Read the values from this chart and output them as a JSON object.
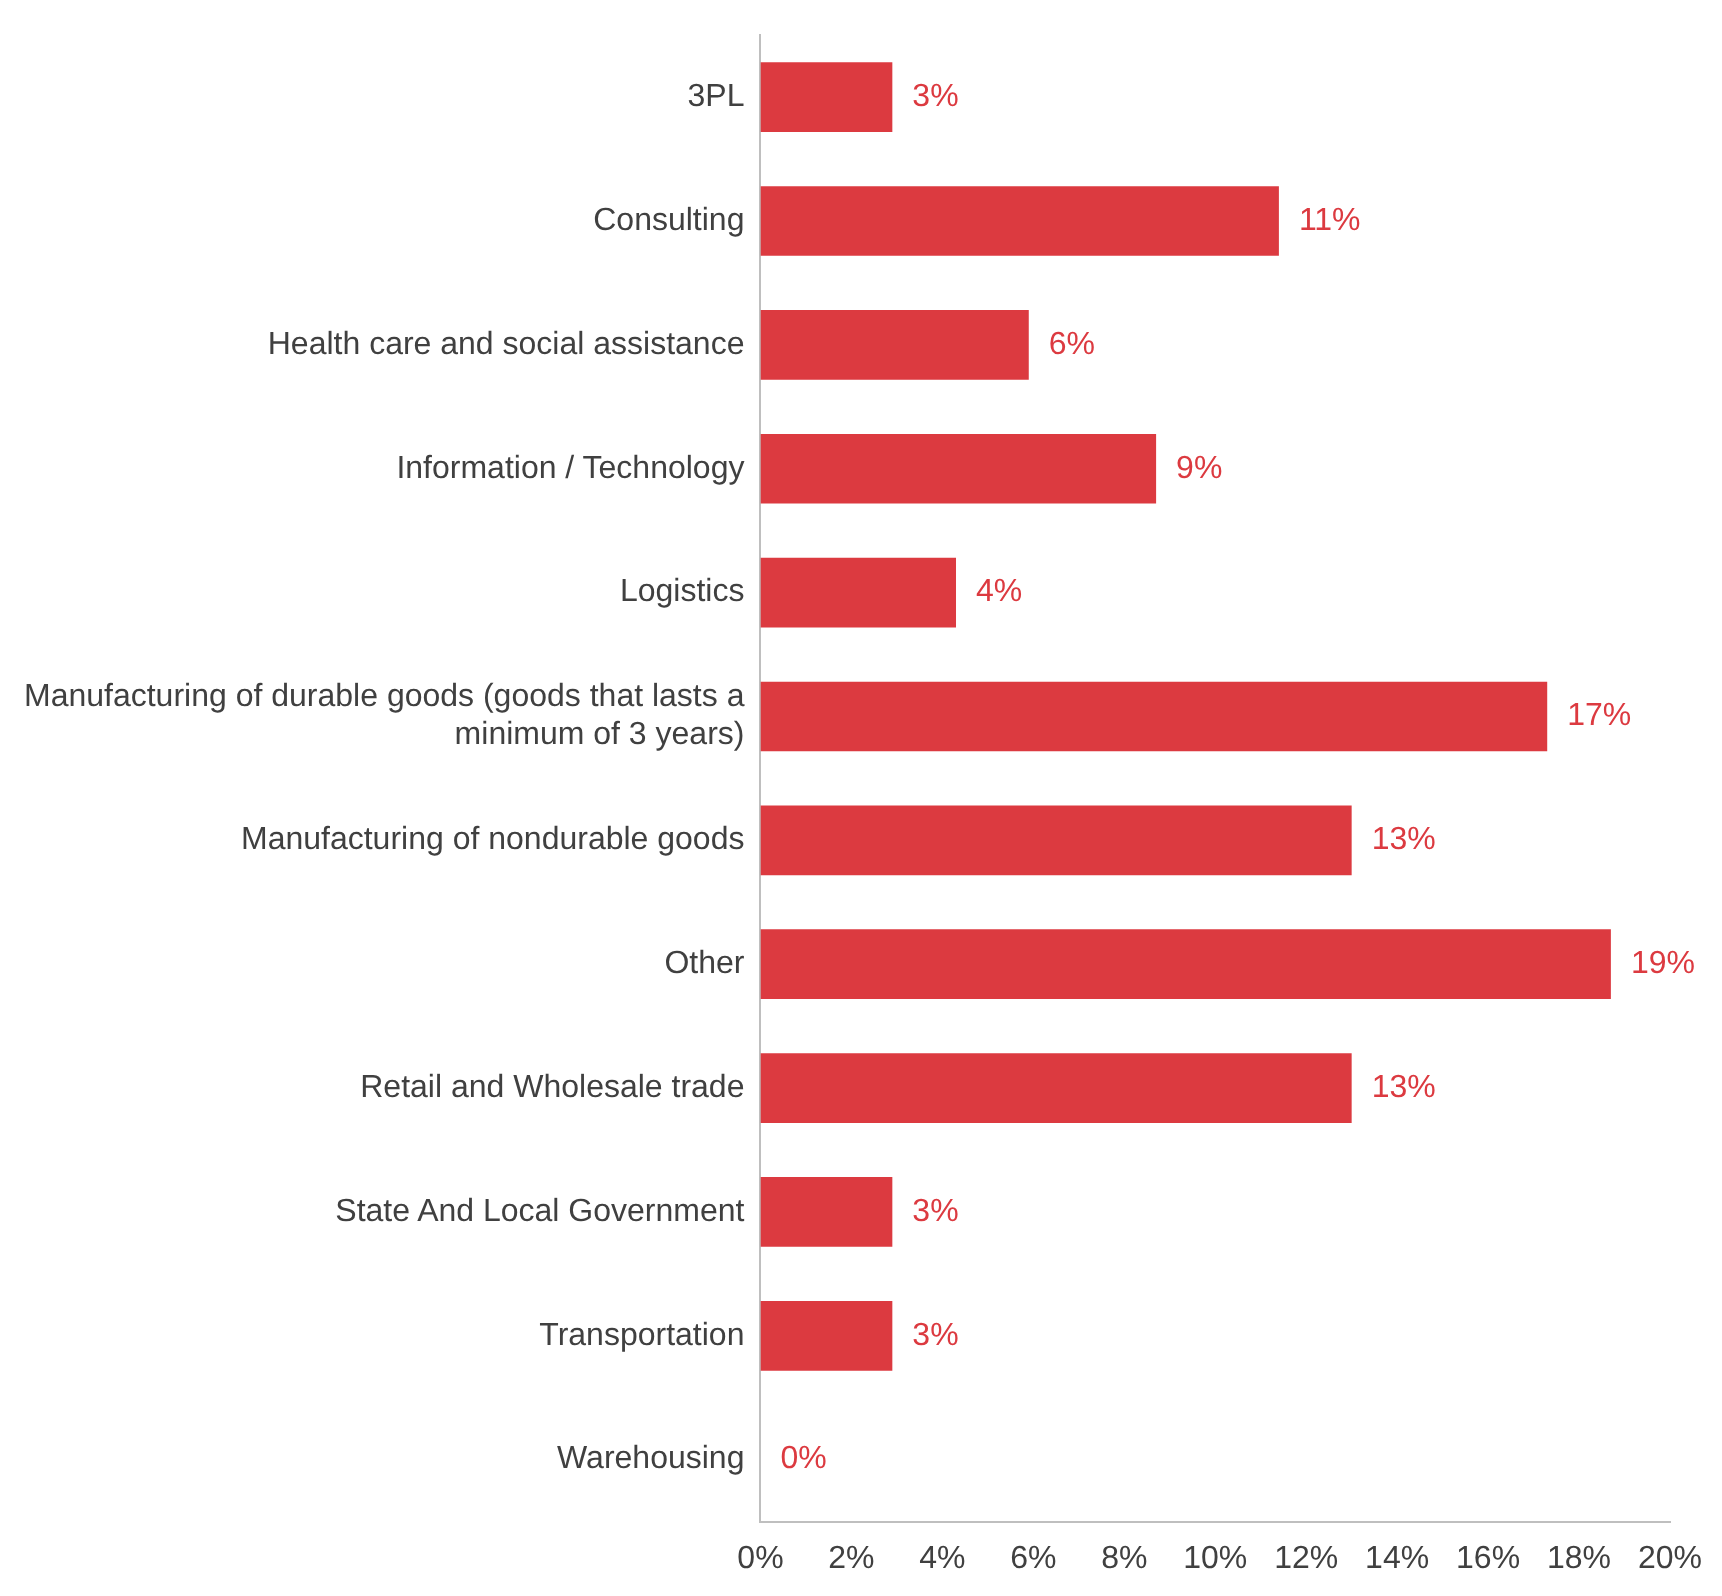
{
  "chart_data": {
    "type": "bar",
    "orientation": "horizontal",
    "categories": [
      "3PL",
      "Consulting",
      "Health care and social assistance",
      "Information / Technology",
      "Logistics",
      "Manufacturing of durable goods (goods that lasts a minimum of 3 years)",
      "Manufacturing of nondurable goods",
      "Other",
      "Retail and Wholesale trade",
      "State And Local Government",
      "Transportation",
      "Warehousing"
    ],
    "values": [
      2.9,
      11.4,
      5.9,
      8.7,
      4.3,
      17.3,
      13.0,
      18.7,
      13.0,
      2.9,
      2.9,
      0
    ],
    "value_labels": [
      "3%",
      "11%",
      "6%",
      "9%",
      "4%",
      "17%",
      "13%",
      "19%",
      "13%",
      "3%",
      "3%",
      "0%"
    ],
    "color": "#dc3a40",
    "xlim": [
      0,
      20
    ],
    "xticks": [
      {
        "value": 0,
        "label": "0%"
      },
      {
        "value": 2,
        "label": "2%"
      },
      {
        "value": 4,
        "label": "4%"
      },
      {
        "value": 6,
        "label": "6%"
      },
      {
        "value": 8,
        "label": "8%"
      },
      {
        "value": 10,
        "label": "10%"
      },
      {
        "value": 12,
        "label": "12%"
      },
      {
        "value": 14,
        "label": "14%"
      },
      {
        "value": 16,
        "label": "16%"
      },
      {
        "value": 18,
        "label": "18%"
      },
      {
        "value": 20,
        "label": "20%"
      }
    ],
    "grid": false,
    "legend": false
  }
}
